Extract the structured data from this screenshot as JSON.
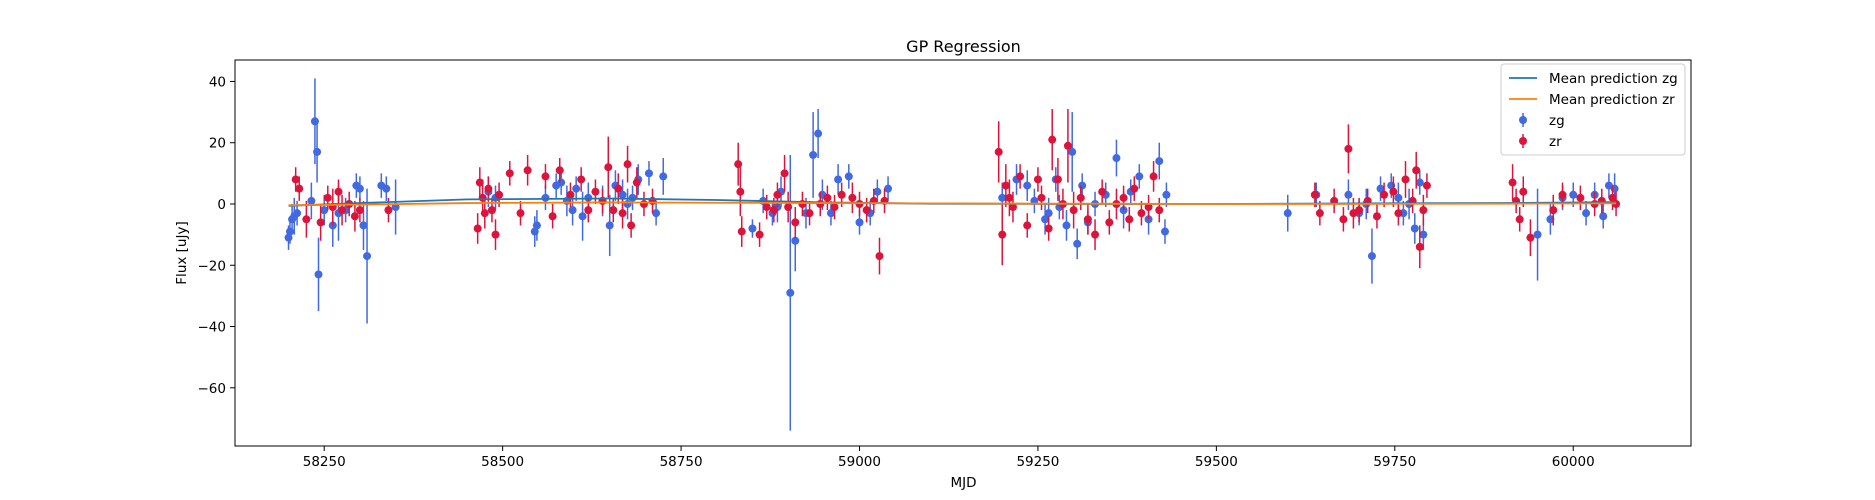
{
  "chart_data": {
    "type": "scatter",
    "title": "GP Regression",
    "xlabel": "MJD",
    "ylabel": "Flux [uJy]",
    "xlim": [
      58125,
      60165
    ],
    "ylim": [
      -79,
      47
    ],
    "xticks": [
      58250,
      58500,
      58750,
      59000,
      59250,
      59500,
      59750,
      60000
    ],
    "xtick_labels": [
      "58250",
      "58500",
      "58750",
      "59000",
      "59250",
      "59500",
      "59750",
      "60000"
    ],
    "yticks": [
      -60,
      -40,
      -20,
      0,
      20,
      40
    ],
    "ytick_labels": [
      "−60",
      "−40",
      "−20",
      "0",
      "20",
      "40"
    ],
    "grid": false,
    "legend_placement": "top-right",
    "legend": [
      {
        "label": "Mean prediction zg",
        "kind": "line",
        "color": "#1f77b4"
      },
      {
        "label": "Mean prediction zr",
        "kind": "line",
        "color": "#ff7f0e"
      },
      {
        "label": "zg",
        "kind": "errorbar",
        "color": "#4169e1"
      },
      {
        "label": "zr",
        "kind": "errorbar",
        "color": "#dc143c"
      }
    ],
    "lines": [
      {
        "name": "Mean prediction zg",
        "color": "#1f77b4",
        "x": [
          58200,
          58300,
          58450,
          58650,
          58800,
          58950,
          59100,
          59300,
          59500,
          59700,
          59900,
          60060
        ],
        "y": [
          -0.6,
          0.3,
          1.5,
          1.8,
          1.3,
          0.5,
          0.1,
          0.0,
          0.0,
          0.2,
          0.3,
          0.6
        ]
      },
      {
        "name": "Mean prediction zr",
        "color": "#ff7f0e",
        "x": [
          58200,
          58300,
          58450,
          58650,
          58800,
          58950,
          59100,
          59300,
          59500,
          59700,
          59900,
          60060
        ],
        "y": [
          -0.4,
          -0.2,
          0.3,
          0.5,
          0.4,
          0.3,
          0.2,
          0.1,
          0.0,
          0.0,
          0.1,
          0.2
        ]
      }
    ],
    "series": [
      {
        "name": "zg",
        "color": "#4169e1",
        "points": [
          [
            58200,
            -11,
            4
          ],
          [
            58202,
            -9,
            4
          ],
          [
            58205,
            -5,
            5
          ],
          [
            58208,
            -4,
            6
          ],
          [
            58212,
            -3,
            4
          ],
          [
            58232,
            1,
            6
          ],
          [
            58237,
            27,
            14
          ],
          [
            58240,
            17,
            10
          ],
          [
            58242,
            -23,
            12
          ],
          [
            58250,
            -2,
            5
          ],
          [
            58262,
            -7,
            7
          ],
          [
            58270,
            -3,
            9
          ],
          [
            58280,
            -2,
            4
          ],
          [
            58295,
            6,
            4
          ],
          [
            58300,
            5,
            4
          ],
          [
            58305,
            -7,
            8
          ],
          [
            58310,
            -17,
            22
          ],
          [
            58330,
            6,
            4
          ],
          [
            58337,
            5,
            4
          ],
          [
            58350,
            -1,
            9
          ],
          [
            58480,
            4,
            5
          ],
          [
            58490,
            2,
            4
          ],
          [
            58545,
            -9,
            5
          ],
          [
            58548,
            -7,
            5
          ],
          [
            58560,
            2,
            4
          ],
          [
            58575,
            6,
            4
          ],
          [
            58582,
            7,
            4
          ],
          [
            58590,
            1,
            5
          ],
          [
            58598,
            -2,
            5
          ],
          [
            58603,
            5,
            4
          ],
          [
            58612,
            -4,
            8
          ],
          [
            58620,
            2,
            5
          ],
          [
            58640,
            1,
            5
          ],
          [
            58650,
            -7,
            10
          ],
          [
            58658,
            6,
            5
          ],
          [
            58668,
            3,
            5
          ],
          [
            58675,
            0,
            5
          ],
          [
            58682,
            2,
            4
          ],
          [
            58690,
            8,
            5
          ],
          [
            58705,
            10,
            4
          ],
          [
            58715,
            -3,
            4
          ],
          [
            58725,
            9,
            6
          ],
          [
            58850,
            -8,
            3
          ],
          [
            58865,
            1,
            4
          ],
          [
            58878,
            -3,
            4
          ],
          [
            58885,
            -1,
            5
          ],
          [
            58890,
            4,
            5
          ],
          [
            58903,
            -29,
            45
          ],
          [
            58910,
            -12,
            10
          ],
          [
            58925,
            -3,
            5
          ],
          [
            58935,
            16,
            14
          ],
          [
            58942,
            23,
            8
          ],
          [
            58948,
            3,
            5
          ],
          [
            58960,
            -3,
            4
          ],
          [
            58970,
            8,
            5
          ],
          [
            58985,
            9,
            4
          ],
          [
            59000,
            -6,
            4
          ],
          [
            59015,
            -3,
            4
          ],
          [
            59025,
            4,
            4
          ],
          [
            59040,
            5,
            4
          ],
          [
            59200,
            2,
            5
          ],
          [
            59220,
            8,
            5
          ],
          [
            59235,
            6,
            5
          ],
          [
            59245,
            1,
            4
          ],
          [
            59260,
            -5,
            5
          ],
          [
            59265,
            -3,
            5
          ],
          [
            59275,
            8,
            4
          ],
          [
            59280,
            -1,
            4
          ],
          [
            59290,
            -7,
            5
          ],
          [
            59298,
            17,
            13
          ],
          [
            59305,
            -13,
            5
          ],
          [
            59312,
            6,
            4
          ],
          [
            59320,
            -6,
            4
          ],
          [
            59330,
            0,
            4
          ],
          [
            59345,
            3,
            4
          ],
          [
            59360,
            15,
            6
          ],
          [
            59370,
            -2,
            6
          ],
          [
            59380,
            4,
            4
          ],
          [
            59392,
            9,
            4
          ],
          [
            59405,
            -5,
            5
          ],
          [
            59420,
            14,
            6
          ],
          [
            59428,
            -9,
            4
          ],
          [
            59430,
            3,
            4
          ],
          [
            59600,
            -3,
            6
          ],
          [
            59640,
            3,
            4
          ],
          [
            59685,
            3,
            5
          ],
          [
            59700,
            -3,
            4
          ],
          [
            59710,
            0,
            5
          ],
          [
            59718,
            -17,
            9
          ],
          [
            59730,
            5,
            4
          ],
          [
            59745,
            6,
            4
          ],
          [
            59755,
            2,
            5
          ],
          [
            59762,
            -3,
            4
          ],
          [
            59770,
            0,
            5
          ],
          [
            59778,
            -8,
            5
          ],
          [
            59785,
            7,
            4
          ],
          [
            59790,
            -10,
            5
          ],
          [
            59950,
            -10,
            15
          ],
          [
            59968,
            -5,
            5
          ],
          [
            59985,
            2,
            4
          ],
          [
            60000,
            3,
            4
          ],
          [
            60018,
            -3,
            4
          ],
          [
            60030,
            3,
            4
          ],
          [
            60042,
            -4,
            4
          ],
          [
            60050,
            6,
            4
          ],
          [
            60058,
            5,
            5
          ]
        ]
      },
      {
        "name": "zr",
        "color": "#dc143c",
        "points": [
          [
            58210,
            8,
            4
          ],
          [
            58215,
            5,
            4
          ],
          [
            58225,
            -5,
            6
          ],
          [
            58245,
            -6,
            6
          ],
          [
            58255,
            2,
            4
          ],
          [
            58262,
            -1,
            6
          ],
          [
            58270,
            4,
            4
          ],
          [
            58275,
            -2,
            5
          ],
          [
            58285,
            0,
            4
          ],
          [
            58293,
            -4,
            5
          ],
          [
            58300,
            -2,
            4
          ],
          [
            58340,
            -2,
            4
          ],
          [
            58465,
            -8,
            5
          ],
          [
            58468,
            7,
            5
          ],
          [
            58472,
            2,
            6
          ],
          [
            58475,
            -3,
            5
          ],
          [
            58480,
            5,
            4
          ],
          [
            58485,
            -2,
            4
          ],
          [
            58490,
            -10,
            5
          ],
          [
            58495,
            3,
            4
          ],
          [
            58510,
            10,
            4
          ],
          [
            58525,
            -3,
            4
          ],
          [
            58535,
            11,
            5
          ],
          [
            58560,
            9,
            4
          ],
          [
            58570,
            -4,
            4
          ],
          [
            58580,
            11,
            4
          ],
          [
            58595,
            3,
            4
          ],
          [
            58610,
            8,
            4
          ],
          [
            58620,
            -2,
            4
          ],
          [
            58630,
            4,
            4
          ],
          [
            58640,
            1,
            4
          ],
          [
            58648,
            12,
            10
          ],
          [
            58655,
            -2,
            4
          ],
          [
            58662,
            5,
            5
          ],
          [
            58668,
            -3,
            5
          ],
          [
            58675,
            13,
            6
          ],
          [
            58680,
            -7,
            4
          ],
          [
            58688,
            7,
            5
          ],
          [
            58698,
            0,
            4
          ],
          [
            58710,
            1,
            4
          ],
          [
            58830,
            13,
            7
          ],
          [
            58833,
            4,
            8
          ],
          [
            58835,
            -9,
            5
          ],
          [
            58860,
            -10,
            4
          ],
          [
            58870,
            -1,
            4
          ],
          [
            58880,
            -2,
            4
          ],
          [
            58885,
            3,
            4
          ],
          [
            58895,
            10,
            6
          ],
          [
            58900,
            -1,
            5
          ],
          [
            58910,
            -6,
            5
          ],
          [
            58920,
            0,
            4
          ],
          [
            58930,
            -3,
            4
          ],
          [
            58945,
            0,
            4
          ],
          [
            58955,
            2,
            4
          ],
          [
            58965,
            -1,
            4
          ],
          [
            58975,
            3,
            4
          ],
          [
            58990,
            2,
            5
          ],
          [
            59000,
            0,
            4
          ],
          [
            59010,
            -2,
            4
          ],
          [
            59020,
            1,
            4
          ],
          [
            59028,
            -17,
            6
          ],
          [
            59035,
            1,
            4
          ],
          [
            59195,
            17,
            10
          ],
          [
            59200,
            -10,
            10
          ],
          [
            59205,
            6,
            7
          ],
          [
            59210,
            2,
            6
          ],
          [
            59215,
            -1,
            5
          ],
          [
            59225,
            9,
            4
          ],
          [
            59235,
            -7,
            4
          ],
          [
            59250,
            8,
            4
          ],
          [
            59255,
            2,
            4
          ],
          [
            59265,
            -8,
            4
          ],
          [
            59270,
            21,
            10
          ],
          [
            59278,
            8,
            7
          ],
          [
            59285,
            0,
            5
          ],
          [
            59292,
            19,
            12
          ],
          [
            59300,
            -2,
            6
          ],
          [
            59310,
            2,
            4
          ],
          [
            59320,
            -5,
            5
          ],
          [
            59330,
            -10,
            5
          ],
          [
            59340,
            4,
            4
          ],
          [
            59350,
            -6,
            4
          ],
          [
            59360,
            0,
            5
          ],
          [
            59370,
            2,
            4
          ],
          [
            59378,
            -5,
            4
          ],
          [
            59385,
            5,
            4
          ],
          [
            59395,
            -3,
            4
          ],
          [
            59405,
            -1,
            4
          ],
          [
            59412,
            9,
            5
          ],
          [
            59420,
            -2,
            4
          ],
          [
            59638,
            3,
            4
          ],
          [
            59645,
            -3,
            4
          ],
          [
            59665,
            1,
            4
          ],
          [
            59678,
            -5,
            4
          ],
          [
            59685,
            18,
            8
          ],
          [
            59692,
            -3,
            5
          ],
          [
            59700,
            -2,
            4
          ],
          [
            59712,
            1,
            4
          ],
          [
            59725,
            -4,
            4
          ],
          [
            59735,
            3,
            4
          ],
          [
            59748,
            4,
            5
          ],
          [
            59755,
            -3,
            4
          ],
          [
            59765,
            8,
            6
          ],
          [
            59775,
            1,
            4
          ],
          [
            59780,
            11,
            6
          ],
          [
            59785,
            -14,
            7
          ],
          [
            59790,
            -2,
            5
          ],
          [
            59795,
            6,
            4
          ],
          [
            59915,
            7,
            6
          ],
          [
            59920,
            1,
            4
          ],
          [
            59925,
            -5,
            4
          ],
          [
            59930,
            4,
            5
          ],
          [
            59940,
            -11,
            6
          ],
          [
            59972,
            -2,
            5
          ],
          [
            59985,
            3,
            4
          ],
          [
            60010,
            2,
            4
          ],
          [
            60030,
            0,
            4
          ],
          [
            60040,
            1,
            4
          ],
          [
            60055,
            2,
            4
          ],
          [
            60060,
            0,
            4
          ]
        ]
      }
    ]
  }
}
